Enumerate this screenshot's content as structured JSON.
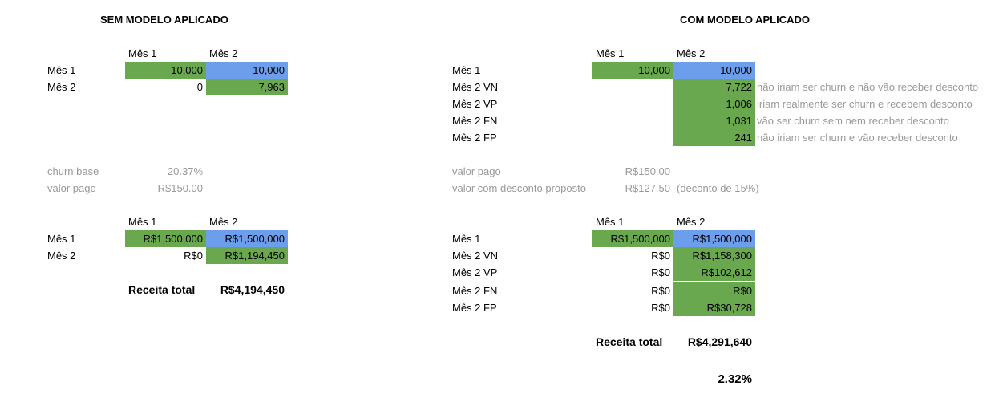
{
  "left": {
    "title": "SEM MODELO APLICADO",
    "table1": {
      "col_headers": [
        "Mês 1",
        "Mês 2"
      ],
      "rows": [
        {
          "label": "Mês 1",
          "c1": "10,000",
          "c2": "10,000"
        },
        {
          "label": "Mês 2",
          "c1": "0",
          "c2": "7,963"
        }
      ]
    },
    "params": [
      {
        "label": "churn base",
        "value": "20.37%"
      },
      {
        "label": "valor pago",
        "value": "R$150.00"
      }
    ],
    "table2": {
      "col_headers": [
        "Mês 1",
        "Mês 2"
      ],
      "rows": [
        {
          "label": "Mês 1",
          "c1": "R$1,500,000",
          "c2": "R$1,500,000"
        },
        {
          "label": "Mês 2",
          "c1": "R$0",
          "c2": "R$1,194,450"
        }
      ]
    },
    "total": {
      "label": "Receita total",
      "value": "R$4,194,450"
    }
  },
  "right": {
    "title": "COM MODELO APLICADO",
    "table1": {
      "col_headers": [
        "Mês 1",
        "Mês 2"
      ],
      "rows": [
        {
          "label": "Mês 1",
          "c1": "10,000",
          "c2": "10,000",
          "note": ""
        },
        {
          "label": "Mês 2 VN",
          "c1": "",
          "c2": "7,722",
          "note": "não iriam ser churn e não vão receber desconto"
        },
        {
          "label": "Mês 2 VP",
          "c1": "",
          "c2": "1,006",
          "note": "iriam realmente ser churn e recebem desconto"
        },
        {
          "label": "Mês 2 FN",
          "c1": "",
          "c2": "1,031",
          "note": "vão ser churn sem nem receber desconto"
        },
        {
          "label": "Mês 2 FP",
          "c1": "",
          "c2": "241",
          "note": "não iriam ser churn e vão receber desconto"
        }
      ]
    },
    "params": [
      {
        "label": "valor pago",
        "value": "R$150.00",
        "note": ""
      },
      {
        "label": "valor com desconto proposto",
        "value": "R$127.50",
        "note": "(deconto de 15%)"
      }
    ],
    "table2": {
      "col_headers": [
        "Mês 1",
        "Mês 2"
      ],
      "rows": [
        {
          "label": "Mês 1",
          "c1": "R$1,500,000",
          "c2": "R$1,500,000"
        },
        {
          "label": "Mês 2 VN",
          "c1": "R$0",
          "c2": "R$1,158,300"
        },
        {
          "label": "Mês 2 VP",
          "c1": "R$0",
          "c2": "R$102,612"
        },
        {
          "label": "Mês 2 FN",
          "c1": "R$0",
          "c2": "R$0"
        },
        {
          "label": "Mês 2 FP",
          "c1": "R$0",
          "c2": "R$30,728"
        }
      ]
    },
    "total": {
      "label": "Receita total",
      "value": "R$4,291,640"
    },
    "uplift": "2.32%"
  },
  "colors": {
    "green": "#6aa84f",
    "blue": "#6d9eeb",
    "grey_text": "#999999"
  }
}
